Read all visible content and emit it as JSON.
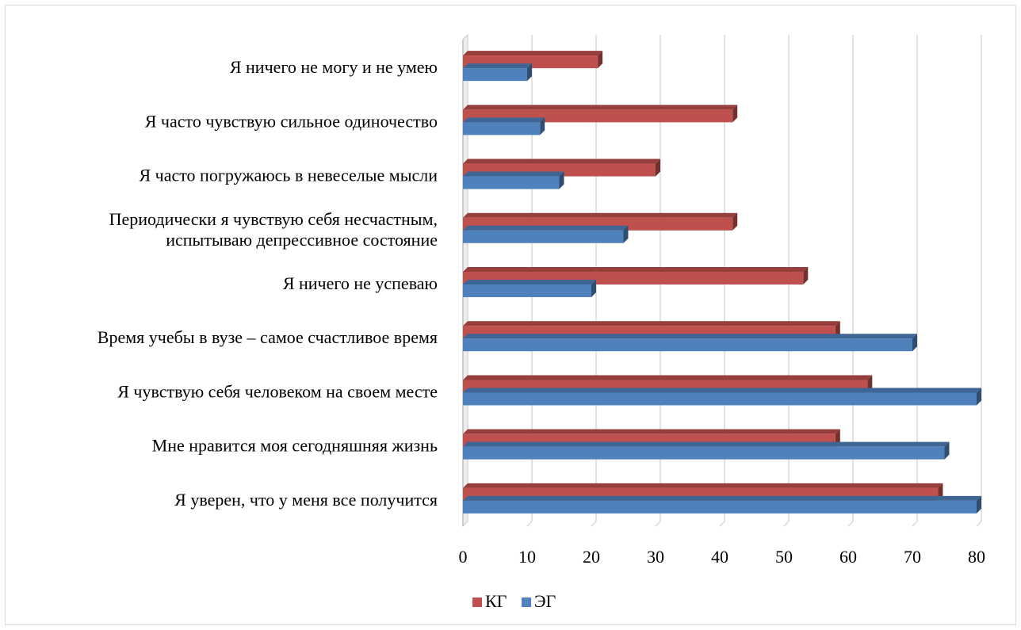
{
  "chart_data": {
    "type": "bar",
    "orientation": "horizontal",
    "style": "3d",
    "title": "",
    "xlabel": "",
    "ylabel": "",
    "categories": [
      "Я уверен, что у меня все получится",
      "Мне нравится моя сегодняшняя жизнь",
      "Я чувствую себя человеком на своем месте",
      "Время учебы в вузе – самое счастливое время",
      "Я ничего не успеваю",
      [
        "Периодически я чувствую себя несчастным,",
        "испытываю депрессивное состояние"
      ],
      "Я часто погружаюсь в невеселые мысли",
      "Я часто чувствую сильное одиночество",
      "Я ничего не могу и не умею"
    ],
    "series": [
      {
        "name": "КГ",
        "color": "#c0504d",
        "values": [
          74,
          58,
          63,
          58,
          53,
          42,
          30,
          42,
          21
        ]
      },
      {
        "name": "ЭГ",
        "color": "#4f81bd",
        "values": [
          80,
          75,
          80,
          70,
          20,
          25,
          15,
          12,
          10
        ]
      }
    ],
    "xlim": [
      0,
      80
    ],
    "xticks": [
      "0",
      "10",
      "20",
      "30",
      "40",
      "50",
      "60",
      "70",
      "80"
    ],
    "grid": true,
    "legend": "bottom",
    "legend_order": [
      "КГ",
      "ЭГ"
    ]
  }
}
